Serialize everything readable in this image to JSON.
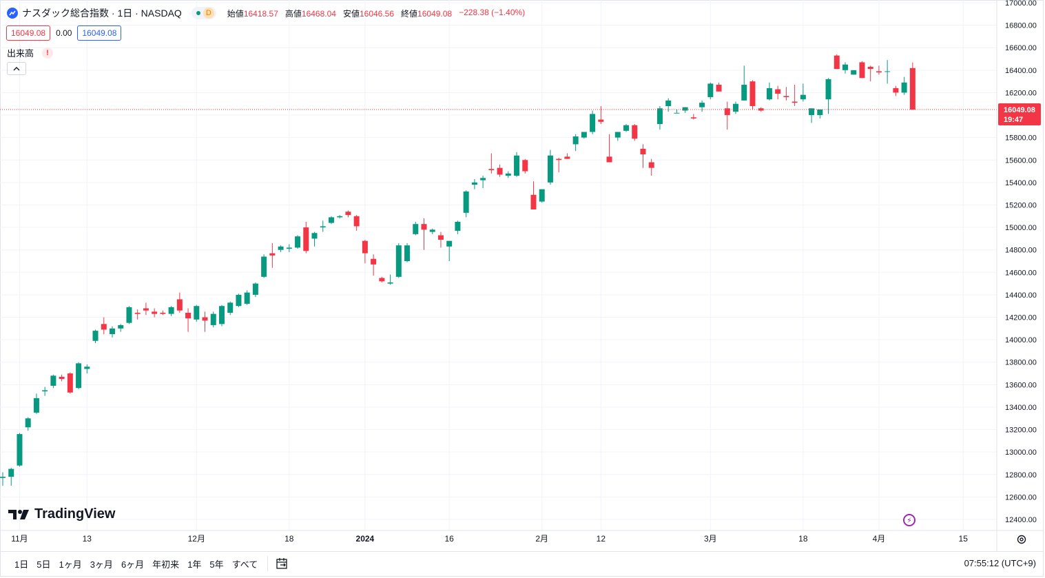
{
  "legend": {
    "title": "ナスダック総合指数 · 1日 · NASDAQ",
    "badge": "D",
    "open_label": "始値",
    "open": "16418.57",
    "high_label": "高値",
    "high": "16468.04",
    "low_label": "安値",
    "low": "16046.56",
    "close_label": "終値",
    "close": "16049.08",
    "change": "−228.38 (−1.40%)"
  },
  "inputs": {
    "bid": "16049.08",
    "spread": "0.00",
    "ask": "16049.08"
  },
  "volume": {
    "label": "出来高",
    "warn": "!"
  },
  "brand": {
    "name": "TradingView"
  },
  "range_buttons": [
    "1日",
    "5日",
    "1ヶ月",
    "3ヶ月",
    "6ヶ月",
    "年初来",
    "1年",
    "5年",
    "すべて"
  ],
  "clock": "07:55:12 (UTC+9)",
  "colors": {
    "up": "#089981",
    "down": "#f23645",
    "grid": "#f0f3fa",
    "accent": "#2962ff"
  },
  "chart_data": {
    "type": "candlestick",
    "ylim": [
      12300,
      17000
    ],
    "y_ticks": [
      12400,
      12600,
      12800,
      13000,
      13200,
      13400,
      13600,
      13800,
      14000,
      14200,
      14400,
      14600,
      14800,
      15000,
      15200,
      15400,
      15600,
      15800,
      16000,
      16200,
      16400,
      16600,
      16800,
      17000
    ],
    "x_labels": [
      {
        "label": "11月",
        "bar": 2
      },
      {
        "label": "13",
        "bar": 10
      },
      {
        "label": "12月",
        "bar": 23
      },
      {
        "label": "18",
        "bar": 34
      },
      {
        "label": "2024",
        "bar": 43
      },
      {
        "label": "16",
        "bar": 53
      },
      {
        "label": "2月",
        "bar": 64
      },
      {
        "label": "12",
        "bar": 71
      },
      {
        "label": "3月",
        "bar": 84
      },
      {
        "label": "18",
        "bar": 95
      },
      {
        "label": "4月",
        "bar": 104
      },
      {
        "label": "15",
        "bar": 114
      }
    ],
    "last_price": "16049.08",
    "countdown": "19:47",
    "last_value": 16049.08,
    "candles": [
      [
        12770,
        12820,
        12700,
        12780
      ],
      [
        12780,
        12860,
        12700,
        12850
      ],
      [
        12880,
        13170,
        12870,
        13160
      ],
      [
        13220,
        13310,
        13190,
        13300
      ],
      [
        13350,
        13520,
        13340,
        13480
      ],
      [
        13540,
        13580,
        13500,
        13550
      ],
      [
        13590,
        13690,
        13570,
        13680
      ],
      [
        13670,
        13690,
        13630,
        13650
      ],
      [
        13700,
        13710,
        13520,
        13530
      ],
      [
        13570,
        13800,
        13560,
        13790
      ],
      [
        13740,
        13780,
        13700,
        13760
      ],
      [
        13990,
        14090,
        13970,
        14080
      ],
      [
        14140,
        14200,
        14050,
        14090
      ],
      [
        14050,
        14120,
        14020,
        14100
      ],
      [
        14100,
        14140,
        14070,
        14130
      ],
      [
        14150,
        14300,
        14140,
        14290
      ],
      [
        14240,
        14270,
        14180,
        14230
      ],
      [
        14280,
        14330,
        14220,
        14260
      ],
      [
        14250,
        14280,
        14200,
        14230
      ],
      [
        14240,
        14260,
        14220,
        14230
      ],
      [
        14230,
        14300,
        14210,
        14290
      ],
      [
        14360,
        14420,
        14240,
        14260
      ],
      [
        14240,
        14280,
        14070,
        14190
      ],
      [
        14180,
        14310,
        14160,
        14300
      ],
      [
        14200,
        14250,
        14070,
        14170
      ],
      [
        14130,
        14250,
        14110,
        14230
      ],
      [
        14140,
        14310,
        14120,
        14300
      ],
      [
        14240,
        14340,
        14220,
        14330
      ],
      [
        14300,
        14410,
        14290,
        14400
      ],
      [
        14320,
        14440,
        14310,
        14420
      ],
      [
        14400,
        14510,
        14380,
        14500
      ],
      [
        14560,
        14760,
        14550,
        14740
      ],
      [
        14770,
        14860,
        14640,
        14750
      ],
      [
        14800,
        14840,
        14780,
        14830
      ],
      [
        14810,
        14850,
        14780,
        14820
      ],
      [
        14820,
        14930,
        14810,
        14920
      ],
      [
        15000,
        15050,
        14770,
        14790
      ],
      [
        14900,
        14960,
        14830,
        14950
      ],
      [
        15000,
        15060,
        14960,
        15010
      ],
      [
        15040,
        15100,
        15030,
        15090
      ],
      [
        15090,
        15110,
        15080,
        15100
      ],
      [
        15140,
        15150,
        15090,
        15110
      ],
      [
        15100,
        15110,
        14970,
        15010
      ],
      [
        14880,
        14890,
        14680,
        14770
      ],
      [
        14720,
        14760,
        14570,
        14670
      ],
      [
        14550,
        14560,
        14510,
        14520
      ],
      [
        14500,
        14580,
        14490,
        14510
      ],
      [
        14560,
        14860,
        14550,
        14840
      ],
      [
        14700,
        14860,
        14690,
        14840
      ],
      [
        14940,
        15050,
        14930,
        15030
      ],
      [
        15030,
        15080,
        14800,
        14980
      ],
      [
        14960,
        14990,
        14940,
        14980
      ],
      [
        14930,
        14960,
        14820,
        14890
      ],
      [
        14830,
        14880,
        14700,
        14880
      ],
      [
        14970,
        15060,
        14940,
        15050
      ],
      [
        15130,
        15330,
        15090,
        15320
      ],
      [
        15380,
        15430,
        15340,
        15400
      ],
      [
        15420,
        15460,
        15350,
        15440
      ],
      [
        15520,
        15660,
        15480,
        15510
      ],
      [
        15530,
        15560,
        15450,
        15470
      ],
      [
        15460,
        15500,
        15440,
        15480
      ],
      [
        15460,
        15670,
        15450,
        15640
      ],
      [
        15600,
        15610,
        15480,
        15500
      ],
      [
        15290,
        15410,
        15160,
        15160
      ],
      [
        15230,
        15320,
        15220,
        15340
      ],
      [
        15400,
        15690,
        15380,
        15640
      ],
      [
        15610,
        15620,
        15490,
        15600
      ],
      [
        15630,
        15660,
        15610,
        15610
      ],
      [
        15740,
        15830,
        15680,
        15810
      ],
      [
        15800,
        15850,
        15790,
        15850
      ],
      [
        15850,
        16040,
        15830,
        16010
      ],
      [
        15960,
        16080,
        15920,
        15940
      ],
      [
        15630,
        15830,
        15590,
        15580
      ],
      [
        15800,
        15850,
        15770,
        15850
      ],
      [
        15860,
        15920,
        15850,
        15910
      ],
      [
        15910,
        15920,
        15770,
        15790
      ],
      [
        15700,
        15740,
        15530,
        15650
      ],
      [
        15580,
        15610,
        15460,
        15530
      ],
      [
        15920,
        16080,
        15870,
        16060
      ],
      [
        16080,
        16150,
        16030,
        16130
      ],
      [
        16020,
        16050,
        16020,
        16020
      ],
      [
        16040,
        16070,
        16020,
        16070
      ],
      [
        15980,
        16010,
        15960,
        15970
      ],
      [
        16070,
        16130,
        16030,
        16110
      ],
      [
        16160,
        16290,
        16140,
        16280
      ],
      [
        16270,
        16290,
        16210,
        16210
      ],
      [
        16060,
        16120,
        15870,
        16000
      ],
      [
        16030,
        16120,
        16010,
        16100
      ],
      [
        16130,
        16440,
        16130,
        16270
      ],
      [
        16300,
        16310,
        16050,
        16080
      ],
      [
        16060,
        16070,
        16030,
        16040
      ],
      [
        16140,
        16290,
        16130,
        16240
      ],
      [
        16230,
        16260,
        16140,
        16190
      ],
      [
        16170,
        16250,
        16130,
        16160
      ],
      [
        16120,
        16270,
        16080,
        16110
      ],
      [
        16140,
        16280,
        16120,
        16180
      ],
      [
        16000,
        16060,
        15930,
        16060
      ],
      [
        16000,
        16050,
        15970,
        16050
      ],
      [
        16140,
        16330,
        16010,
        16320
      ],
      [
        16530,
        16540,
        16420,
        16410
      ],
      [
        16400,
        16470,
        16370,
        16450
      ],
      [
        16360,
        16380,
        16360,
        16400
      ],
      [
        16470,
        16480,
        16330,
        16330
      ],
      [
        16430,
        16440,
        16300,
        16410
      ],
      [
        16390,
        16440,
        16360,
        16380
      ],
      [
        16390,
        16490,
        16280,
        16390
      ],
      [
        16240,
        16260,
        16170,
        16200
      ],
      [
        16200,
        16340,
        16180,
        16290
      ],
      [
        16418.57,
        16468.04,
        16046.56,
        16049.08
      ]
    ]
  }
}
